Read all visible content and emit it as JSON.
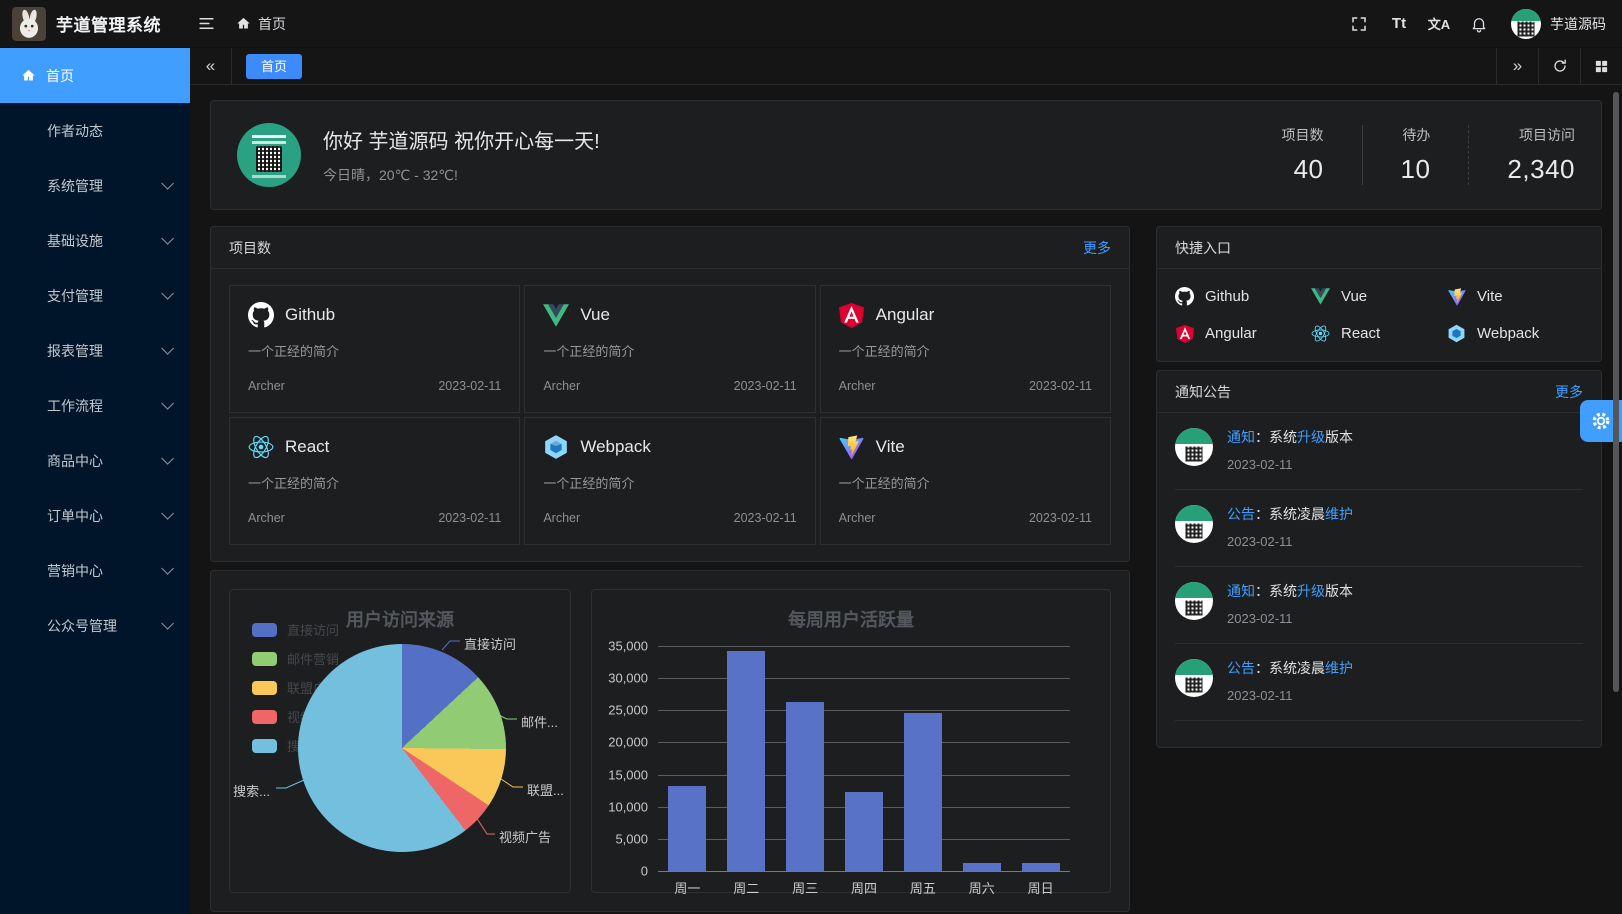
{
  "colors": {
    "accent": "#409eff",
    "tab_active": "#3d8bf8",
    "sidebar_bg": "#001529",
    "card_bg": "#1d1e1f"
  },
  "header": {
    "app_title": "芋道管理系统",
    "breadcrumb_home": "首页",
    "font_toggle": "Tt",
    "lang_toggle": "文A",
    "user_name": "芋道源码"
  },
  "tabbar": {
    "active_tab": "首页"
  },
  "sidebar": {
    "items": [
      {
        "label": "首页",
        "active": true,
        "expandable": false
      },
      {
        "label": "作者动态",
        "active": false,
        "expandable": false
      },
      {
        "label": "系统管理",
        "active": false,
        "expandable": true
      },
      {
        "label": "基础设施",
        "active": false,
        "expandable": true
      },
      {
        "label": "支付管理",
        "active": false,
        "expandable": true
      },
      {
        "label": "报表管理",
        "active": false,
        "expandable": true
      },
      {
        "label": "工作流程",
        "active": false,
        "expandable": true
      },
      {
        "label": "商品中心",
        "active": false,
        "expandable": true
      },
      {
        "label": "订单中心",
        "active": false,
        "expandable": true
      },
      {
        "label": "营销中心",
        "active": false,
        "expandable": true
      },
      {
        "label": "公众号管理",
        "active": false,
        "expandable": true
      }
    ]
  },
  "banner": {
    "greeting": "你好 芋道源码 祝你开心每一天!",
    "weather": "今日晴，20℃ - 32℃!",
    "stats": [
      {
        "label": "项目数",
        "value": "40"
      },
      {
        "label": "待办",
        "value": "10"
      },
      {
        "label": "项目访问",
        "value": "2,340"
      }
    ]
  },
  "projects_card": {
    "title": "项目数",
    "more_label": "更多",
    "items": [
      {
        "name": "Github",
        "desc": "一个正经的简介",
        "author": "Archer",
        "date": "2023-02-11",
        "icon": "github-icon"
      },
      {
        "name": "Vue",
        "desc": "一个正经的简介",
        "author": "Archer",
        "date": "2023-02-11",
        "icon": "vue-icon"
      },
      {
        "name": "Angular",
        "desc": "一个正经的简介",
        "author": "Archer",
        "date": "2023-02-11",
        "icon": "angular-icon"
      },
      {
        "name": "React",
        "desc": "一个正经的简介",
        "author": "Archer",
        "date": "2023-02-11",
        "icon": "react-icon"
      },
      {
        "name": "Webpack",
        "desc": "一个正经的简介",
        "author": "Archer",
        "date": "2023-02-11",
        "icon": "webpack-icon"
      },
      {
        "name": "Vite",
        "desc": "一个正经的简介",
        "author": "Archer",
        "date": "2023-02-11",
        "icon": "vite-icon"
      }
    ]
  },
  "shortcuts_card": {
    "title": "快捷入口",
    "items": [
      {
        "label": "Github",
        "icon": "github-icon"
      },
      {
        "label": "Vue",
        "icon": "vue-icon"
      },
      {
        "label": "Vite",
        "icon": "vite-icon"
      },
      {
        "label": "Angular",
        "icon": "angular-icon"
      },
      {
        "label": "React",
        "icon": "react-icon"
      },
      {
        "label": "Webpack",
        "icon": "webpack-icon"
      }
    ]
  },
  "notices_card": {
    "title": "通知公告",
    "more_label": "更多",
    "items": [
      {
        "parts": [
          "通知",
          "：系统",
          "升级",
          "版本"
        ],
        "date": "2023-02-11"
      },
      {
        "parts": [
          "公告",
          "：系统凌晨",
          "维护",
          ""
        ],
        "date": "2023-02-11"
      },
      {
        "parts": [
          "通知",
          "：系统",
          "升级",
          "版本"
        ],
        "date": "2023-02-11"
      },
      {
        "parts": [
          "公告",
          "：系统凌晨",
          "维护",
          ""
        ],
        "date": "2023-02-11"
      }
    ]
  },
  "chart_data": [
    {
      "type": "pie",
      "title": "用户访问来源",
      "legend": [
        "直接访问",
        "邮件营销",
        "联盟广告",
        "视频广告",
        "搜索引擎"
      ],
      "legend_position": "left",
      "series": [
        {
          "name": "直接访问",
          "value": 335
        },
        {
          "name": "邮件营销",
          "value": 310
        },
        {
          "name": "联盟广告",
          "value": 234
        },
        {
          "name": "视频广告",
          "value": 135
        },
        {
          "name": "搜索引擎",
          "value": 1548
        }
      ],
      "colors": [
        "#5470c6",
        "#91cc75",
        "#fac858",
        "#ee6666",
        "#73c0de"
      ],
      "labels_display": [
        "直接访问",
        "邮件...",
        "联盟...",
        "视频广告",
        "搜索..."
      ]
    },
    {
      "type": "bar",
      "title": "每周用户活跃量",
      "categories": [
        "周一",
        "周二",
        "周三",
        "周四",
        "周五",
        "周六",
        "周日"
      ],
      "values": [
        13253,
        34235,
        26321,
        12340,
        24643,
        1322,
        1324
      ],
      "ylim": [
        0,
        35000
      ],
      "ytick_step": 5000,
      "ytick_labels": [
        "35,000",
        "30,000",
        "25,000",
        "20,000",
        "15,000",
        "10,000",
        "5,000",
        "0"
      ],
      "bar_color": "#5872c7",
      "grid": true
    }
  ]
}
